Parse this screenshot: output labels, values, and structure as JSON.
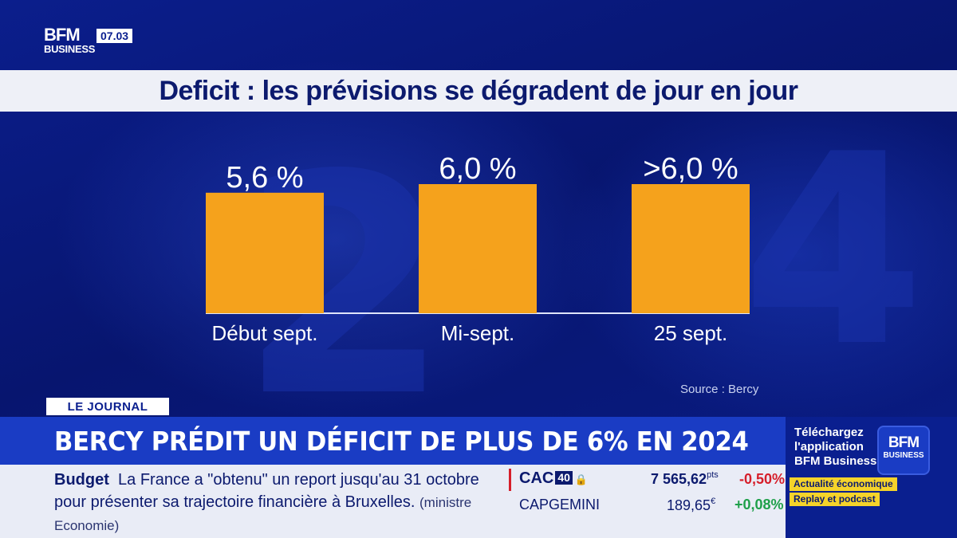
{
  "header": {
    "logo_top": "BFM",
    "logo_bottom": "BUSINESS",
    "clock": "07.03"
  },
  "title": "Deficit : les prévisions se dégradent de jour en jour",
  "chart_data": {
    "type": "bar",
    "title": "Deficit : les prévisions se dégradent de jour en jour",
    "categories": [
      "Début sept.",
      "Mi-sept.",
      "25 sept."
    ],
    "values": [
      5.6,
      6.0,
      6.0
    ],
    "data_labels": [
      "5,6 %",
      "6,0 %",
      ">6,0 %"
    ],
    "bar_color": "#f5a21c",
    "xlabel": "",
    "ylabel": "",
    "ylim": [
      0,
      6.0
    ],
    "grid": false
  },
  "source": "Source : Bercy",
  "journal_tag": "LE JOURNAL",
  "headline": "BERCY PRÉDIT UN DÉFICIT DE PLUS DE 6% EN 2024",
  "ticker": {
    "label": "Budget",
    "text": "La France a \"obtenu\" un report jusqu'au 31 octobre pour présenter sa trajectoire financière à Bruxelles.",
    "source": "(ministre Economie)"
  },
  "market": {
    "index_name": "CAC",
    "index_badge": "40",
    "index_value": "7 565,62",
    "index_unit": "pts",
    "index_change": "-0,50%",
    "stock_name": "CAPGEMINI",
    "stock_value": "189,65",
    "stock_unit": "€",
    "stock_change": "+0,08%"
  },
  "promo": {
    "line1": "Téléchargez",
    "line2": "l'application",
    "line3": "BFM Business",
    "logo_top": "BFM",
    "logo_bottom": "BUSINESS",
    "tag1": "Actualité économique",
    "tag2": "Replay et podcast"
  }
}
